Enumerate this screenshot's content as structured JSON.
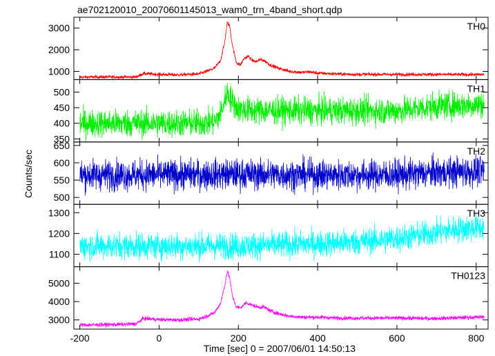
{
  "chart_data": {
    "type": "line",
    "title": "ae702120010_20070601145013_wam0_trn_4band_short.qdp",
    "xlabel": "Time [sec] 0 = 2007/06/01 14:50:13",
    "ylabel": "Counts/sec",
    "xlim": [
      -215,
      830
    ],
    "x_ticks": [
      -200,
      0,
      200,
      400,
      600,
      800
    ],
    "grid": false,
    "panels": [
      {
        "name": "TH0",
        "color": "#ff0000",
        "ylim": [
          620,
          3500
        ],
        "y_ticks": [
          1000,
          2000,
          3000
        ],
        "x": [
          -200,
          -160,
          -100,
          -60,
          -50,
          -40,
          -20,
          0,
          50,
          100,
          120,
          140,
          155,
          165,
          172,
          178,
          185,
          195,
          205,
          215,
          225,
          235,
          245,
          255,
          265,
          280,
          300,
          330,
          360,
          380,
          400,
          450,
          500,
          600,
          700,
          800,
          820
        ],
        "y": [
          730,
          740,
          740,
          740,
          800,
          900,
          880,
          860,
          840,
          880,
          1000,
          1150,
          1500,
          2300,
          3250,
          3100,
          2200,
          1400,
          1300,
          1600,
          1700,
          1500,
          1450,
          1550,
          1500,
          1300,
          1150,
          1000,
          950,
          980,
          920,
          880,
          860,
          860,
          860,
          850,
          860
        ],
        "noise": 40
      },
      {
        "name": "TH1",
        "color": "#00ee00",
        "ylim": [
          340,
          540
        ],
        "y_ticks": [
          350,
          400,
          450,
          500
        ],
        "x": [
          -200,
          -100,
          0,
          100,
          140,
          155,
          165,
          172,
          180,
          190,
          200,
          250,
          300,
          400,
          500,
          600,
          700,
          800,
          820
        ],
        "y": [
          400,
          400,
          400,
          400,
          405,
          430,
          470,
          500,
          480,
          460,
          445,
          440,
          440,
          440,
          440,
          440,
          455,
          460,
          462
        ],
        "noise": 22
      },
      {
        "name": "TH2",
        "color": "#0000cc",
        "ylim": [
          480,
          660
        ],
        "y_ticks": [
          500,
          550,
          600,
          650
        ],
        "x": [
          -200,
          0,
          200,
          400,
          600,
          700,
          800,
          820
        ],
        "y": [
          565,
          565,
          567,
          565,
          565,
          572,
          575,
          575
        ],
        "noise": 22
      },
      {
        "name": "TH3",
        "color": "#00ffff",
        "ylim": [
          1040,
          1340
        ],
        "y_ticks": [
          1100,
          1200,
          1300
        ],
        "x": [
          -200,
          0,
          100,
          200,
          300,
          400,
          500,
          600,
          680,
          750,
          820
        ],
        "y": [
          1140,
          1140,
          1140,
          1140,
          1145,
          1150,
          1160,
          1175,
          1200,
          1220,
          1230
        ],
        "noise": 32
      },
      {
        "name": "TH0123",
        "color": "#ff00ff",
        "ylim": [
          2500,
          5900
        ],
        "y_ticks": [
          3000,
          4000,
          5000
        ],
        "x": [
          -200,
          -100,
          -60,
          -50,
          -40,
          -20,
          0,
          50,
          100,
          120,
          140,
          155,
          165,
          172,
          178,
          185,
          195,
          205,
          220,
          235,
          250,
          265,
          280,
          300,
          330,
          360,
          400,
          450,
          500,
          600,
          700,
          800,
          820
        ],
        "y": [
          2720,
          2750,
          2780,
          2900,
          3080,
          3050,
          3020,
          3000,
          3050,
          3200,
          3400,
          3900,
          4800,
          5650,
          5300,
          4300,
          3700,
          3650,
          3950,
          3800,
          3700,
          3700,
          3500,
          3350,
          3200,
          3150,
          3150,
          3100,
          3100,
          3100,
          3080,
          3150,
          3160
        ],
        "noise": 55
      }
    ]
  }
}
